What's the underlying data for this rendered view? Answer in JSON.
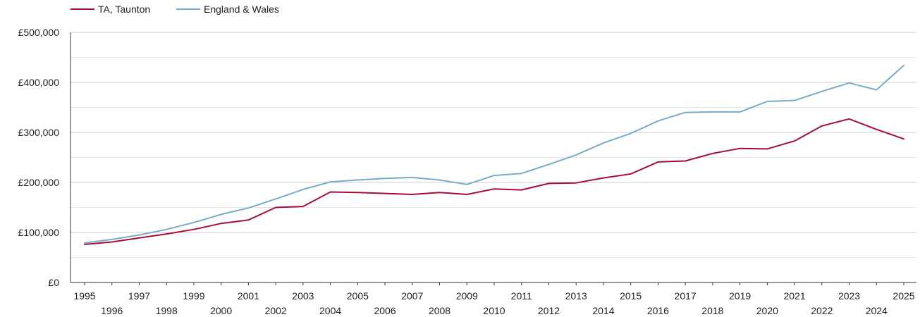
{
  "chart_data": {
    "type": "line",
    "title": "",
    "xlabel": "",
    "ylabel": "",
    "x": [
      1995,
      1996,
      1997,
      1998,
      1999,
      2000,
      2001,
      2002,
      2003,
      2004,
      2005,
      2006,
      2007,
      2008,
      2009,
      2010,
      2011,
      2012,
      2013,
      2014,
      2015,
      2016,
      2017,
      2018,
      2019,
      2020,
      2021,
      2022,
      2023,
      2024,
      2025
    ],
    "x_ticks": [
      "1995",
      "1996",
      "1997",
      "1998",
      "1999",
      "2000",
      "2001",
      "2002",
      "2003",
      "2004",
      "2005",
      "2006",
      "2007",
      "2008",
      "2009",
      "2010",
      "2011",
      "2012",
      "2013",
      "2014",
      "2015",
      "2016",
      "2017",
      "2018",
      "2019",
      "2020",
      "2021",
      "2022",
      "2023",
      "2024",
      "2025"
    ],
    "ylim": [
      0,
      500000
    ],
    "y_ticks": [
      {
        "value": 0,
        "label": "£0"
      },
      {
        "value": 100000,
        "label": "£100,000"
      },
      {
        "value": 200000,
        "label": "£200,000"
      },
      {
        "value": 300000,
        "label": "£300,000"
      },
      {
        "value": 400000,
        "label": "£400,000"
      },
      {
        "value": 500000,
        "label": "£500,000"
      }
    ],
    "grid": true,
    "legend_position": "top-left",
    "series": [
      {
        "name": "TA, Taunton",
        "color": "#a50f34",
        "values": [
          76000,
          81000,
          89000,
          97000,
          106000,
          118000,
          125000,
          150000,
          152000,
          181000,
          180000,
          178000,
          176000,
          180000,
          176000,
          187000,
          185000,
          198000,
          199000,
          209000,
          217000,
          241000,
          243000,
          258000,
          268000,
          267000,
          283000,
          313000,
          327000,
          306000,
          287000
        ]
      },
      {
        "name": "England & Wales",
        "color": "#79abc9",
        "values": [
          79000,
          86000,
          95000,
          106000,
          120000,
          136000,
          149000,
          167000,
          186000,
          201000,
          205000,
          208000,
          210000,
          205000,
          196000,
          214000,
          218000,
          236000,
          255000,
          279000,
          298000,
          323000,
          340000,
          341000,
          341000,
          362000,
          364000,
          382000,
          399000,
          385000,
          434000
        ]
      }
    ]
  }
}
